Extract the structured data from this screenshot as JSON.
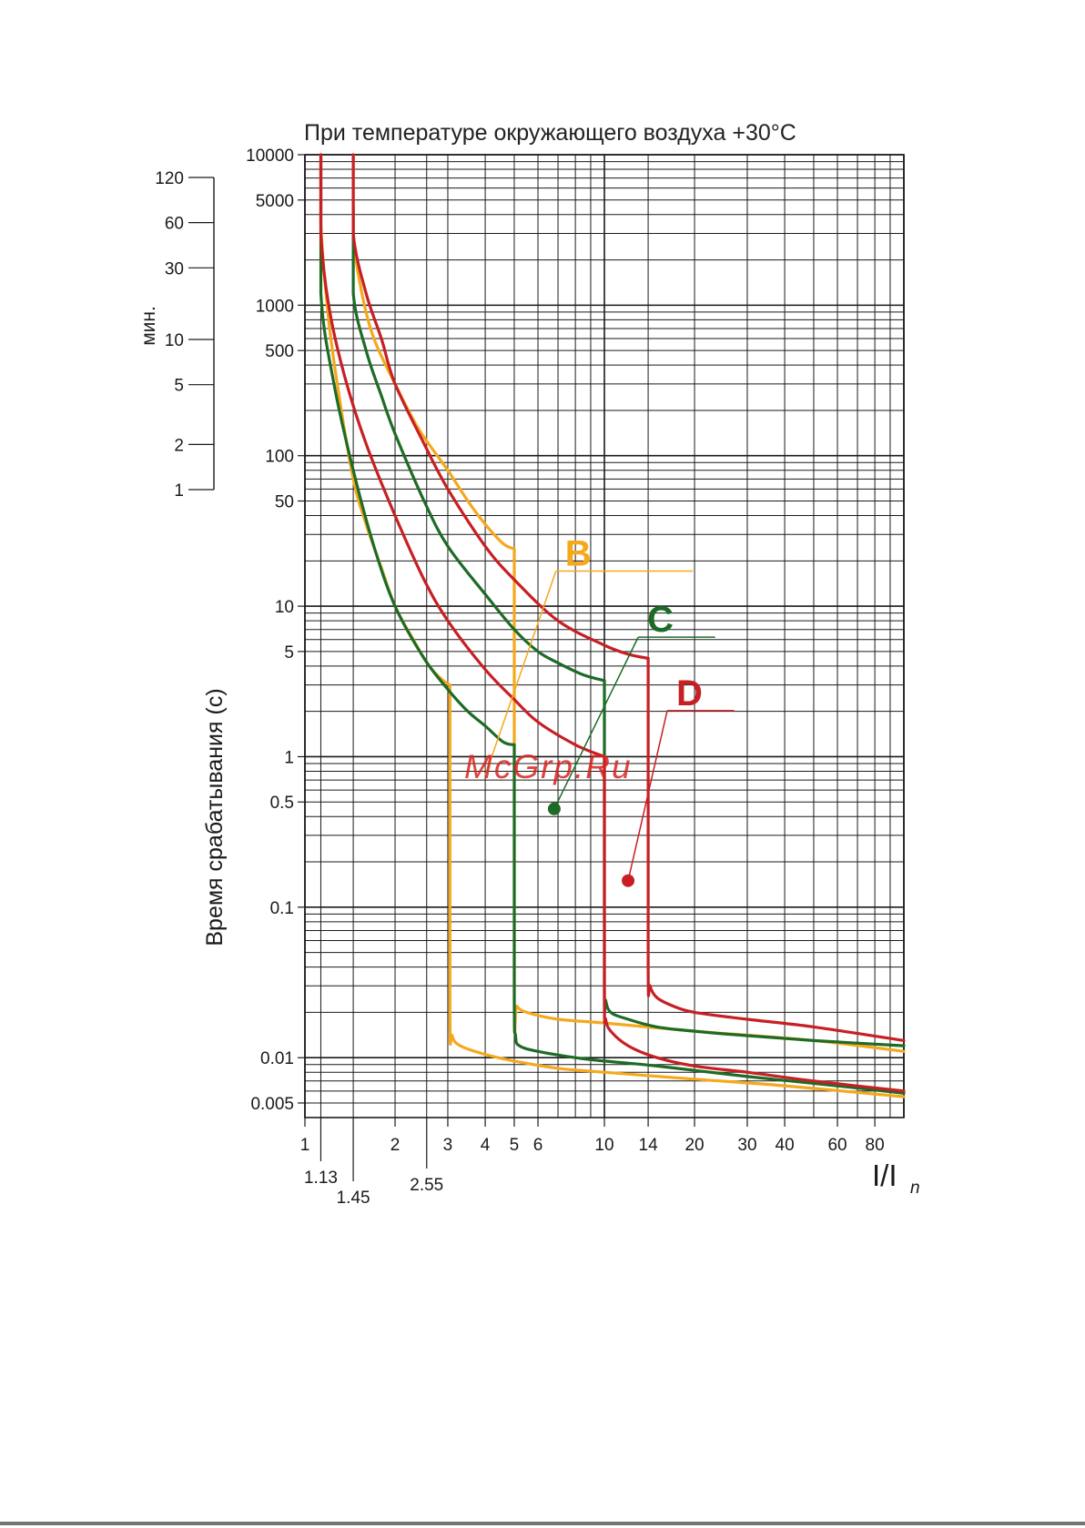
{
  "chart_data": {
    "type": "line",
    "title": "При температуре окружающего воздуха +30°C",
    "xlabel": "I/I",
    "xlabel_sub": "n",
    "ylabel": "Время срабатывания (с)",
    "ylabel_minutes": "мин.",
    "x_scale": "log",
    "y_scale": "log",
    "xlim": [
      1,
      100
    ],
    "ylim": [
      0.004,
      10000
    ],
    "x_ticks": [
      {
        "v": 1,
        "label": "1"
      },
      {
        "v": 2,
        "label": "2"
      },
      {
        "v": 3,
        "label": "3"
      },
      {
        "v": 4,
        "label": "4"
      },
      {
        "v": 5,
        "label": "5"
      },
      {
        "v": 6,
        "label": "6"
      },
      {
        "v": 10,
        "label": "10"
      },
      {
        "v": 14,
        "label": "14"
      },
      {
        "v": 20,
        "label": "20"
      },
      {
        "v": 30,
        "label": "30"
      },
      {
        "v": 40,
        "label": "40"
      },
      {
        "v": 60,
        "label": "60"
      },
      {
        "v": 80,
        "label": "80"
      }
    ],
    "x_ticks_secondary": [
      {
        "v": 1.13,
        "label": "1.13"
      },
      {
        "v": 1.45,
        "label": "1.45"
      },
      {
        "v": 2.55,
        "label": "2.55"
      }
    ],
    "y_ticks": [
      {
        "v": 10000,
        "label": "10000"
      },
      {
        "v": 5000,
        "label": "5000"
      },
      {
        "v": 1000,
        "label": "1000"
      },
      {
        "v": 500,
        "label": "500"
      },
      {
        "v": 100,
        "label": "100"
      },
      {
        "v": 50,
        "label": "50"
      },
      {
        "v": 10,
        "label": "10"
      },
      {
        "v": 5,
        "label": "5"
      },
      {
        "v": 1,
        "label": "1"
      },
      {
        "v": 0.5,
        "label": "0.5"
      },
      {
        "v": 0.1,
        "label": "0.1"
      },
      {
        "v": 0.01,
        "label": "0.01"
      },
      {
        "v": 0.005,
        "label": "0.005"
      }
    ],
    "minute_ticks": [
      {
        "v": 120,
        "label": "120"
      },
      {
        "v": 60,
        "label": "60"
      },
      {
        "v": 30,
        "label": "30"
      },
      {
        "v": 10,
        "label": "10"
      },
      {
        "v": 5,
        "label": "5"
      },
      {
        "v": 2,
        "label": "2"
      },
      {
        "v": 1,
        "label": "1"
      }
    ],
    "grid": true,
    "series": [
      {
        "name": "B",
        "color": "#f5a81c",
        "curves": [
          {
            "x": [
              1.13,
              1.13,
              1.2,
              1.3,
              1.45,
              1.6,
              1.8,
              2.0,
              2.3,
              2.6,
              2.9,
              3.05
            ],
            "y": [
              10000,
              3500,
              800,
              250,
              70,
              35,
              18,
              10,
              6,
              4,
              3.2,
              3
            ]
          },
          {
            "x": [
              3.05,
              3.05,
              3.1,
              3.3,
              4.0,
              5.0,
              7.0,
              10,
              20,
              40,
              100
            ],
            "y": [
              3,
              0.02,
              0.014,
              0.012,
              0.0105,
              0.0095,
              0.0085,
              0.008,
              0.0072,
              0.0065,
              0.0055
            ]
          },
          {
            "x": [
              1.45,
              1.45,
              1.55,
              1.7,
              2.0,
              2.4,
              3.0,
              3.5,
              4.0,
              4.6,
              5.0
            ],
            "y": [
              10000,
              3000,
              1200,
              600,
              300,
              150,
              80,
              50,
              35,
              26,
              24
            ]
          },
          {
            "x": [
              5.0,
              5.0,
              5.1,
              5.5,
              7.0,
              10,
              20,
              50,
              100
            ],
            "y": [
              24,
              0.025,
              0.022,
              0.02,
              0.018,
              0.017,
              0.015,
              0.013,
              0.011
            ]
          }
        ]
      },
      {
        "name": "C",
        "color": "#1d6b25",
        "curves": [
          {
            "x": [
              1.13,
              1.13,
              1.25,
              1.45,
              1.7,
              2.0,
              2.5,
              3.0,
              3.5,
              4.0,
              4.6,
              5.0
            ],
            "y": [
              10000,
              1200,
              300,
              80,
              25,
              10,
              4.5,
              2.8,
              2.0,
              1.6,
              1.25,
              1.2
            ]
          },
          {
            "x": [
              5.0,
              5.0,
              5.05,
              5.2,
              6.0,
              8.0,
              10,
              15,
              30,
              60,
              100
            ],
            "y": [
              1.2,
              0.025,
              0.014,
              0.012,
              0.011,
              0.01,
              0.0095,
              0.0088,
              0.0075,
              0.0065,
              0.0058
            ]
          },
          {
            "x": [
              1.45,
              1.45,
              1.6,
              1.8,
              2.0,
              2.5,
              3.0,
              4.0,
              5.0,
              6.0,
              7.0,
              8.5,
              10
            ],
            "y": [
              4500,
              1200,
              500,
              250,
              140,
              50,
              25,
              12,
              7,
              5,
              4.2,
              3.5,
              3.2
            ]
          },
          {
            "x": [
              10,
              10,
              10.1,
              10.5,
              12,
              15,
              20,
              30,
              50,
              100
            ],
            "y": [
              3.2,
              0.03,
              0.024,
              0.02,
              0.018,
              0.016,
              0.015,
              0.014,
              0.013,
              0.012
            ]
          }
        ]
      },
      {
        "name": "D",
        "color": "#c71f24",
        "curves": [
          {
            "x": [
              1.13,
              1.13,
              1.2,
              1.35,
              1.6,
              2.0,
              2.5,
              3.0,
              4.0,
              5.0,
              6.0,
              8.0,
              10
            ],
            "y": [
              10000,
              3000,
              1000,
              350,
              120,
              40,
              15,
              8,
              3.8,
              2.4,
              1.7,
              1.2,
              1.0
            ]
          },
          {
            "x": [
              10,
              10,
              10.1,
              10.5,
              12,
              15,
              20,
              30,
              50,
              100
            ],
            "y": [
              1.0,
              0.025,
              0.018,
              0.015,
              0.012,
              0.01,
              0.0088,
              0.008,
              0.007,
              0.006
            ]
          },
          {
            "x": [
              1.45,
              1.45,
              1.6,
              1.8,
              2.0,
              2.5,
              3.0,
              4.0,
              5.0,
              7.0,
              10,
              12,
              14
            ],
            "y": [
              10000,
              3000,
              1200,
              600,
              300,
              120,
              60,
              25,
              15,
              8,
              5.5,
              4.8,
              4.5
            ]
          },
          {
            "x": [
              14,
              14,
              14.2,
              15,
              17,
              20,
              30,
              50,
              100
            ],
            "y": [
              4.5,
              0.04,
              0.03,
              0.025,
              0.022,
              0.02,
              0.018,
              0.016,
              0.013
            ]
          }
        ]
      }
    ],
    "annotations": [
      {
        "label": "B",
        "color": "#f5a81c",
        "point": [
          4.0,
          0.75
        ],
        "text_at": [
          8.5,
          22
        ],
        "shelf_to": [
          16,
          16
        ]
      },
      {
        "label": "C",
        "color": "#1d6b25",
        "point": [
          6.8,
          0.45
        ],
        "text_at": [
          16,
          8
        ],
        "shelf_to": [
          19,
          6
        ]
      },
      {
        "label": "D",
        "color": "#c71f24",
        "point": [
          12.0,
          0.15
        ],
        "text_at": [
          20,
          2.6
        ],
        "shelf_to": [
          22,
          2.0
        ]
      }
    ]
  },
  "watermark": "McGrp.Ru"
}
